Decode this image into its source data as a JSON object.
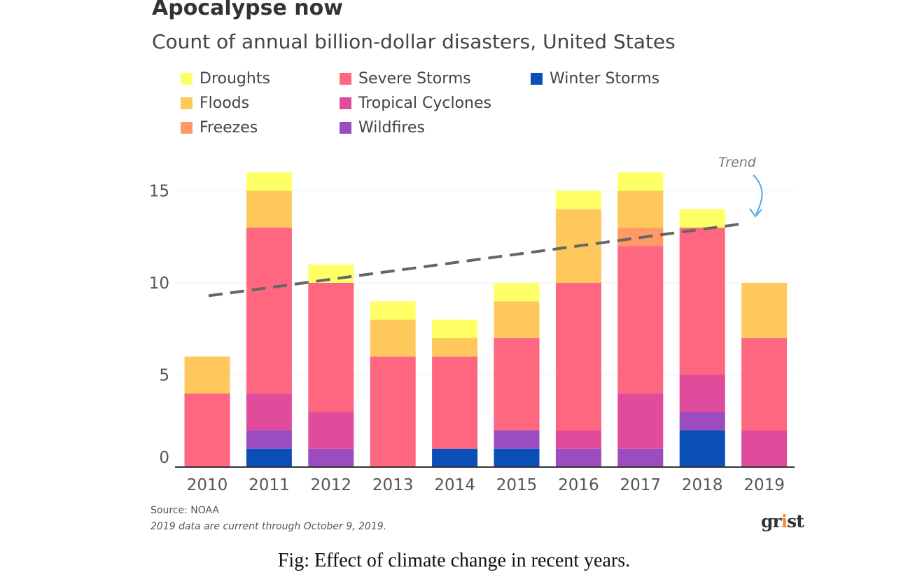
{
  "title": "Apocalypse now",
  "subtitle": "Count of annual billion-dollar disasters, United States",
  "source": "Source: NOAA",
  "note": "2019 data are current through October 9, 2019.",
  "logo": {
    "text": "grist"
  },
  "caption": "Fig: Effect of climate change in recent years.",
  "trend_label": "Trend",
  "chart_data": {
    "type": "bar",
    "stacked": true,
    "title": "Apocalypse now",
    "subtitle": "Count of annual billion-dollar disasters, United States",
    "xlabel": "",
    "ylabel": "",
    "ylim": [
      0,
      16
    ],
    "yticks": [
      0,
      5,
      10,
      15
    ],
    "categories": [
      "2010",
      "2011",
      "2012",
      "2013",
      "2014",
      "2015",
      "2016",
      "2017",
      "2018",
      "2019"
    ],
    "legend_placement": "top",
    "grid": true,
    "series": [
      {
        "name": "Winter Storms",
        "color": "#0a4fb8",
        "values": [
          0,
          1,
          0,
          0,
          1,
          1,
          0,
          0,
          2,
          0
        ]
      },
      {
        "name": "Wildfires",
        "color": "#9b4cbf",
        "values": [
          0,
          1,
          1,
          0,
          0,
          1,
          1,
          1,
          1,
          0
        ]
      },
      {
        "name": "Tropical Cyclones",
        "color": "#e04b9b",
        "values": [
          0,
          2,
          2,
          0,
          0,
          0,
          1,
          3,
          2,
          2
        ]
      },
      {
        "name": "Severe Storms",
        "color": "#ff6680",
        "values": [
          4,
          9,
          7,
          6,
          5,
          5,
          8,
          8,
          8,
          5
        ]
      },
      {
        "name": "Freezes",
        "color": "#ff9966",
        "values": [
          0,
          0,
          0,
          0,
          0,
          0,
          0,
          1,
          0,
          0
        ]
      },
      {
        "name": "Floods",
        "color": "#ffc85c",
        "values": [
          2,
          2,
          0,
          2,
          1,
          2,
          4,
          2,
          0,
          3
        ]
      },
      {
        "name": "Droughts",
        "color": "#ffff66",
        "values": [
          0,
          1,
          1,
          1,
          1,
          1,
          1,
          1,
          1,
          0
        ]
      }
    ],
    "trend": {
      "label": "Trend",
      "color": "#666666",
      "from": {
        "x": "2010",
        "y": 9.3
      },
      "to": {
        "x": "2019",
        "y": 13.2
      }
    }
  },
  "legend": [
    {
      "name": "Droughts",
      "color": "#ffff66"
    },
    {
      "name": "Floods",
      "color": "#ffc85c"
    },
    {
      "name": "Freezes",
      "color": "#ff9966"
    },
    {
      "name": "Severe Storms",
      "color": "#ff6680"
    },
    {
      "name": "Tropical Cyclones",
      "color": "#e04b9b"
    },
    {
      "name": "Wildfires",
      "color": "#9b4cbf"
    },
    {
      "name": "Winter Storms",
      "color": "#0a4fb8"
    }
  ]
}
